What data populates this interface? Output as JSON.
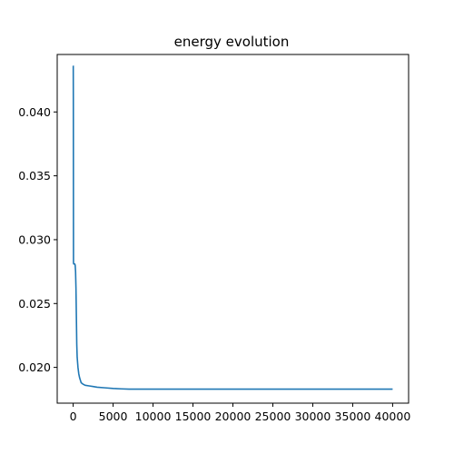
{
  "chart_data": {
    "type": "line",
    "title": "energy evolution",
    "xlabel": "",
    "ylabel": "",
    "xlim": [
      -2000,
      42000
    ],
    "ylim": [
      0.0172,
      0.0445
    ],
    "grid": false,
    "x_ticks": [
      0,
      5000,
      10000,
      15000,
      20000,
      25000,
      30000,
      35000,
      40000
    ],
    "x_tick_labels": [
      "0",
      "5000",
      "10000",
      "15000",
      "20000",
      "25000",
      "30000",
      "35000",
      "40000"
    ],
    "y_ticks": [
      0.02,
      0.025,
      0.03,
      0.035,
      0.04
    ],
    "y_tick_labels": [
      "0.020",
      "0.025",
      "0.030",
      "0.035",
      "0.040"
    ],
    "series": [
      {
        "color": "#1f77b4",
        "x": [
          0,
          10,
          20,
          30,
          40,
          60,
          80,
          100,
          150,
          200,
          250,
          300,
          350,
          400,
          450,
          500,
          600,
          700,
          800,
          900,
          1000,
          1200,
          1500,
          2000,
          2500,
          3000,
          4000,
          5000,
          6000,
          7000,
          8000,
          10000,
          12000,
          15000,
          20000,
          25000,
          30000,
          35000,
          40000
        ],
        "y": [
          0.0436,
          0.0436,
          0.041,
          0.035,
          0.0282,
          0.0281,
          0.0281,
          0.0281,
          0.0281,
          0.0281,
          0.028,
          0.0275,
          0.0262,
          0.024,
          0.0218,
          0.0208,
          0.02,
          0.0195,
          0.0192,
          0.019,
          0.0188,
          0.0187,
          0.0186,
          0.01855,
          0.0185,
          0.01845,
          0.0184,
          0.01835,
          0.01832,
          0.0183,
          0.0183,
          0.0183,
          0.0183,
          0.0183,
          0.0183,
          0.0183,
          0.0183,
          0.0183,
          0.0183
        ]
      }
    ]
  }
}
